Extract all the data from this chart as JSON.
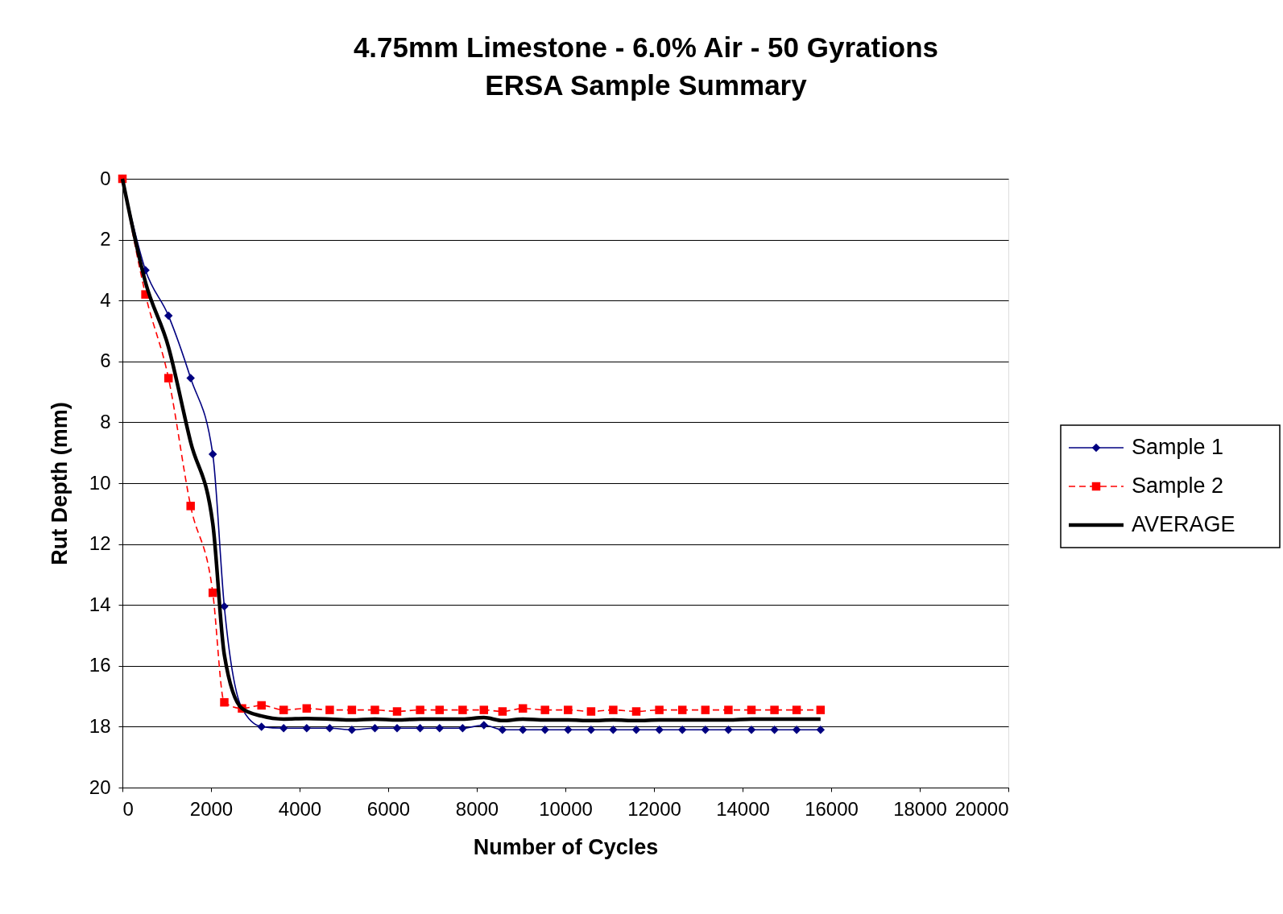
{
  "chart_data": {
    "type": "line",
    "title": "4.75mm Limestone - 6.0% Air - 50 Gyrations",
    "subtitle": "ERSA Sample Summary",
    "xlabel": "Number of Cycles",
    "ylabel": "Rut Depth (mm)",
    "x": [
      0,
      520,
      1040,
      1540,
      2040,
      2300,
      2700,
      3140,
      3640,
      4160,
      4680,
      5180,
      5700,
      6200,
      6720,
      7160,
      7680,
      8160,
      8580,
      9040,
      9540,
      10060,
      10580,
      11080,
      11600,
      12120,
      12640,
      13160,
      13680,
      14200,
      14720,
      15220,
      15760
    ],
    "series": [
      {
        "name": "Sample 1",
        "color": "#000080",
        "marker": "diamond",
        "line_style": "solid",
        "values": [
          0,
          3.0,
          4.5,
          6.55,
          9.05,
          14.05,
          17.4,
          18.0,
          18.05,
          18.05,
          18.05,
          18.1,
          18.05,
          18.05,
          18.05,
          18.05,
          18.05,
          17.95,
          18.1,
          18.1,
          18.1,
          18.1,
          18.1,
          18.1,
          18.1,
          18.1,
          18.1,
          18.1,
          18.1,
          18.1,
          18.1,
          18.1,
          18.1
        ]
      },
      {
        "name": "Sample 2",
        "color": "#ff0000",
        "marker": "square",
        "line_style": "dashed",
        "values": [
          0,
          3.8,
          6.55,
          10.75,
          13.6,
          17.2,
          17.4,
          17.3,
          17.45,
          17.4,
          17.45,
          17.45,
          17.45,
          17.5,
          17.45,
          17.45,
          17.45,
          17.45,
          17.5,
          17.4,
          17.45,
          17.45,
          17.5,
          17.45,
          17.5,
          17.45,
          17.45,
          17.45,
          17.45,
          17.45,
          17.45,
          17.45,
          17.45
        ]
      },
      {
        "name": "AVERAGE",
        "color": "#000000",
        "marker": "none",
        "line_style": "solid",
        "values": [
          0,
          3.4,
          5.53,
          8.65,
          11.33,
          15.63,
          17.4,
          17.65,
          17.75,
          17.73,
          17.75,
          17.78,
          17.75,
          17.78,
          17.75,
          17.75,
          17.75,
          17.7,
          17.8,
          17.75,
          17.78,
          17.78,
          17.8,
          17.78,
          17.8,
          17.78,
          17.78,
          17.78,
          17.78,
          17.75,
          17.75,
          17.75,
          17.75
        ]
      }
    ],
    "xlim": [
      0,
      20000
    ],
    "xticks": [
      0,
      2000,
      4000,
      6000,
      8000,
      10000,
      12000,
      14000,
      16000,
      18000,
      20000
    ],
    "ylim": [
      20,
      0
    ],
    "yticks": [
      0,
      2,
      4,
      6,
      8,
      10,
      12,
      14,
      16,
      18,
      20
    ],
    "grid": "y",
    "legend": "right"
  }
}
